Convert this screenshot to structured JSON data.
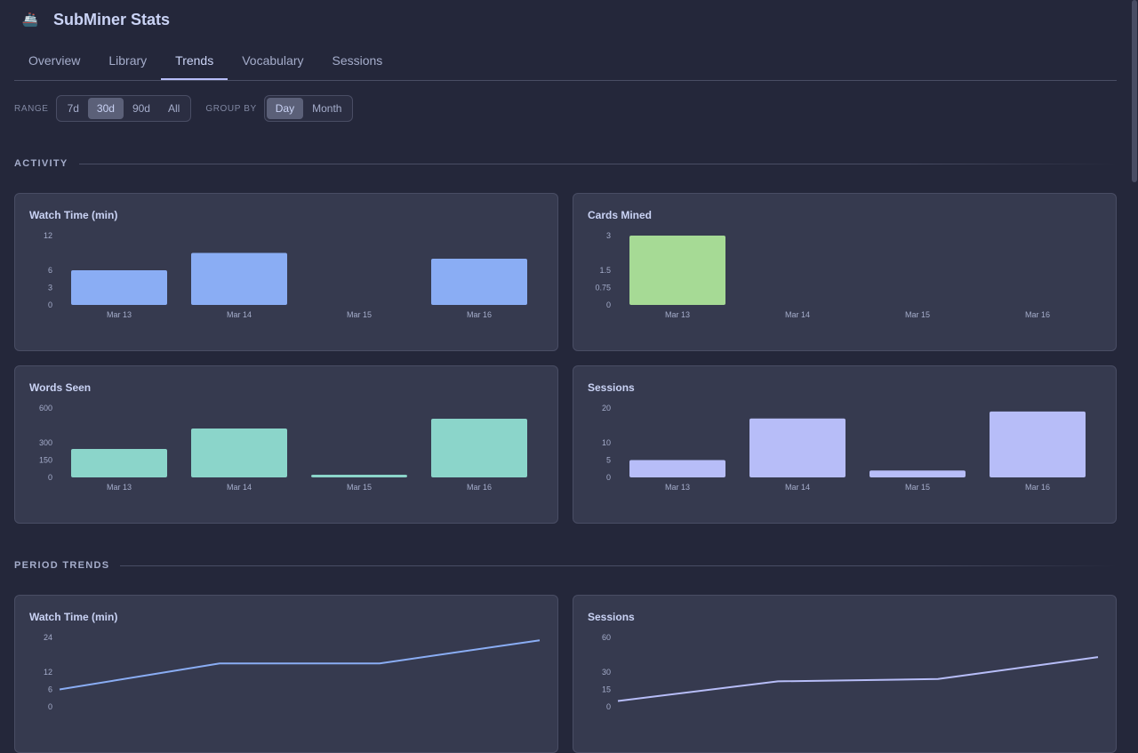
{
  "app": {
    "title": "SubMiner Stats",
    "logo_icon": "submarine-icon"
  },
  "tabs": [
    {
      "label": "Overview"
    },
    {
      "label": "Library"
    },
    {
      "label": "Trends",
      "active": true
    },
    {
      "label": "Vocabulary"
    },
    {
      "label": "Sessions"
    }
  ],
  "controls": {
    "range_label": "RANGE",
    "range_options": [
      "7d",
      "30d",
      "90d",
      "All"
    ],
    "range_selected": "30d",
    "group_label": "GROUP BY",
    "group_options": [
      "Day",
      "Month"
    ],
    "group_selected": "Day"
  },
  "sections": {
    "activity": "ACTIVITY",
    "period": "PERIOD TRENDS"
  },
  "colors": {
    "background": "#24273a",
    "card": "#363a4f",
    "blue": "#8aadf4",
    "green": "#a6da95",
    "teal": "#8bd5ca",
    "lavender": "#b7bdf8"
  },
  "chart_data": [
    {
      "type": "bar",
      "title": "Watch Time (min)",
      "categories": [
        "Mar 13",
        "Mar 14",
        "Mar 15",
        "Mar 16"
      ],
      "values": [
        6,
        9,
        0,
        8
      ],
      "yticks": [
        0,
        3,
        6,
        12
      ],
      "ylim": [
        0,
        12
      ],
      "color": "#8aadf4"
    },
    {
      "type": "bar",
      "title": "Cards Mined",
      "categories": [
        "Mar 13",
        "Mar 14",
        "Mar 15",
        "Mar 16"
      ],
      "values": [
        3,
        0,
        0,
        0
      ],
      "yticks": [
        0,
        0.75,
        1.5,
        3
      ],
      "ylim": [
        0,
        3
      ],
      "color": "#a6da95"
    },
    {
      "type": "bar",
      "title": "Words Seen",
      "categories": [
        "Mar 13",
        "Mar 14",
        "Mar 15",
        "Mar 16"
      ],
      "values": [
        246,
        423,
        23,
        508
      ],
      "yticks": [
        0,
        150,
        300,
        600
      ],
      "ylim": [
        0,
        600
      ],
      "color": "#8bd5ca"
    },
    {
      "type": "bar",
      "title": "Sessions",
      "categories": [
        "Mar 13",
        "Mar 14",
        "Mar 15",
        "Mar 16"
      ],
      "values": [
        5,
        17,
        2,
        19
      ],
      "yticks": [
        0,
        5,
        10,
        20
      ],
      "ylim": [
        0,
        20
      ],
      "color": "#b7bdf8"
    },
    {
      "type": "line",
      "title": "Watch Time (min)",
      "values": [
        6,
        15,
        15,
        23
      ],
      "yticks": [
        0,
        6,
        12,
        24
      ],
      "ylim": [
        0,
        24
      ],
      "color": "#8aadf4"
    },
    {
      "type": "line",
      "title": "Sessions",
      "values": [
        5,
        22,
        24,
        43
      ],
      "yticks": [
        0,
        15,
        30,
        60
      ],
      "ylim": [
        0,
        60
      ],
      "color": "#b7bdf8"
    }
  ]
}
